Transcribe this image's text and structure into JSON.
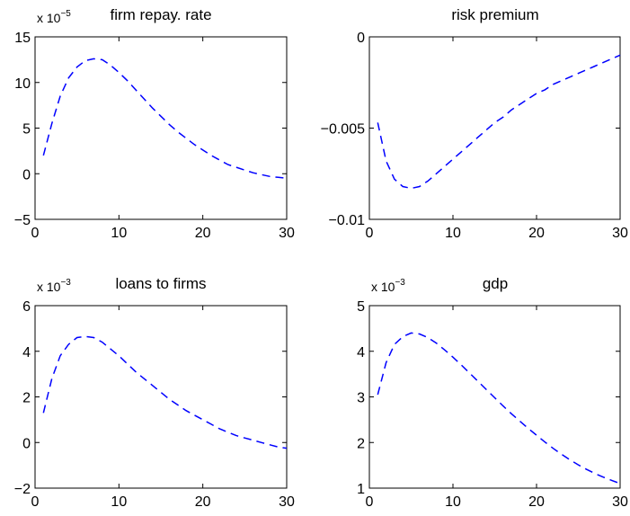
{
  "chart_data": [
    {
      "type": "line",
      "title": "firm repay. rate",
      "scale_label": {
        "base": "x 10",
        "exponent": "−5"
      },
      "xlim": [
        0,
        30
      ],
      "ylim": [
        -5,
        15
      ],
      "xticks": [
        0,
        10,
        20,
        30
      ],
      "yticks": [
        -5,
        0,
        5,
        10,
        15
      ],
      "xtick_labels": [
        "0",
        "10",
        "20",
        "30"
      ],
      "ytick_labels": [
        "−5",
        "0",
        "5",
        "10",
        "15"
      ],
      "series": [
        {
          "color": "#0000ff",
          "line_style": "dashed",
          "x": [
            1,
            2,
            3,
            4,
            5,
            6,
            7,
            8,
            9,
            10,
            11,
            12,
            13,
            14,
            15,
            16,
            17,
            18,
            19,
            20,
            21,
            22,
            23,
            24,
            25,
            26,
            27,
            28,
            29,
            30
          ],
          "y": [
            2.0,
            5.5,
            8.5,
            10.5,
            11.7,
            12.4,
            12.6,
            12.5,
            11.9,
            11.1,
            10.2,
            9.2,
            8.2,
            7.2,
            6.3,
            5.4,
            4.6,
            3.9,
            3.2,
            2.6,
            2.0,
            1.5,
            1.0,
            0.7,
            0.4,
            0.1,
            -0.1,
            -0.3,
            -0.4,
            -0.5
          ]
        }
      ]
    },
    {
      "type": "line",
      "title": "risk premium",
      "scale_label": null,
      "xlim": [
        0,
        30
      ],
      "ylim": [
        -0.01,
        0
      ],
      "xticks": [
        0,
        10,
        20,
        30
      ],
      "yticks": [
        -0.01,
        -0.005,
        0
      ],
      "xtick_labels": [
        "0",
        "10",
        "20",
        "30"
      ],
      "ytick_labels": [
        "−0.01",
        "−0.005",
        "0"
      ],
      "series": [
        {
          "color": "#0000ff",
          "line_style": "dashed",
          "x": [
            1,
            2,
            3,
            4,
            5,
            6,
            7,
            8,
            9,
            10,
            11,
            12,
            13,
            14,
            15,
            16,
            17,
            18,
            19,
            20,
            21,
            22,
            23,
            24,
            25,
            26,
            27,
            28,
            29,
            30
          ],
          "y": [
            -0.0047,
            -0.0068,
            -0.0078,
            -0.0082,
            -0.0083,
            -0.0082,
            -0.0079,
            -0.0075,
            -0.0071,
            -0.0067,
            -0.0063,
            -0.0059,
            -0.0055,
            -0.0051,
            -0.0047,
            -0.0044,
            -0.004,
            -0.0037,
            -0.0034,
            -0.0031,
            -0.0029,
            -0.0026,
            -0.0024,
            -0.0022,
            -0.002,
            -0.0018,
            -0.0016,
            -0.0014,
            -0.0012,
            -0.001
          ]
        }
      ]
    },
    {
      "type": "line",
      "title": "loans to firms",
      "scale_label": {
        "base": "x 10",
        "exponent": "−3"
      },
      "xlim": [
        0,
        30
      ],
      "ylim": [
        -2,
        6
      ],
      "xticks": [
        0,
        10,
        20,
        30
      ],
      "yticks": [
        -2,
        0,
        2,
        4,
        6
      ],
      "xtick_labels": [
        "0",
        "10",
        "20",
        "30"
      ],
      "ytick_labels": [
        "−2",
        "0",
        "2",
        "4",
        "6"
      ],
      "series": [
        {
          "color": "#0000ff",
          "line_style": "dashed",
          "x": [
            1,
            2,
            3,
            4,
            5,
            6,
            7,
            8,
            9,
            10,
            11,
            12,
            13,
            14,
            15,
            16,
            17,
            18,
            19,
            20,
            21,
            22,
            23,
            24,
            25,
            26,
            27,
            28,
            29,
            30
          ],
          "y": [
            1.3,
            2.8,
            3.8,
            4.3,
            4.6,
            4.65,
            4.6,
            4.4,
            4.1,
            3.8,
            3.45,
            3.1,
            2.8,
            2.5,
            2.2,
            1.9,
            1.65,
            1.4,
            1.2,
            1.0,
            0.8,
            0.6,
            0.45,
            0.3,
            0.2,
            0.1,
            0.0,
            -0.1,
            -0.2,
            -0.25
          ]
        }
      ]
    },
    {
      "type": "line",
      "title": "gdp",
      "scale_label": {
        "base": "x 10",
        "exponent": "−3"
      },
      "xlim": [
        0,
        30
      ],
      "ylim": [
        1,
        5
      ],
      "xticks": [
        0,
        10,
        20,
        30
      ],
      "yticks": [
        1,
        2,
        3,
        4,
        5
      ],
      "xtick_labels": [
        "0",
        "10",
        "20",
        "30"
      ],
      "ytick_labels": [
        "1",
        "2",
        "3",
        "4",
        "5"
      ],
      "series": [
        {
          "color": "#0000ff",
          "line_style": "dashed",
          "x": [
            1,
            2,
            3,
            4,
            5,
            6,
            7,
            8,
            9,
            10,
            11,
            12,
            13,
            14,
            15,
            16,
            17,
            18,
            19,
            20,
            21,
            22,
            23,
            24,
            25,
            26,
            27,
            28,
            29,
            30
          ],
          "y": [
            3.05,
            3.75,
            4.15,
            4.32,
            4.4,
            4.38,
            4.3,
            4.18,
            4.03,
            3.87,
            3.7,
            3.52,
            3.34,
            3.16,
            2.98,
            2.8,
            2.63,
            2.47,
            2.31,
            2.16,
            2.01,
            1.87,
            1.74,
            1.62,
            1.51,
            1.41,
            1.32,
            1.24,
            1.17,
            1.1
          ]
        }
      ]
    }
  ]
}
